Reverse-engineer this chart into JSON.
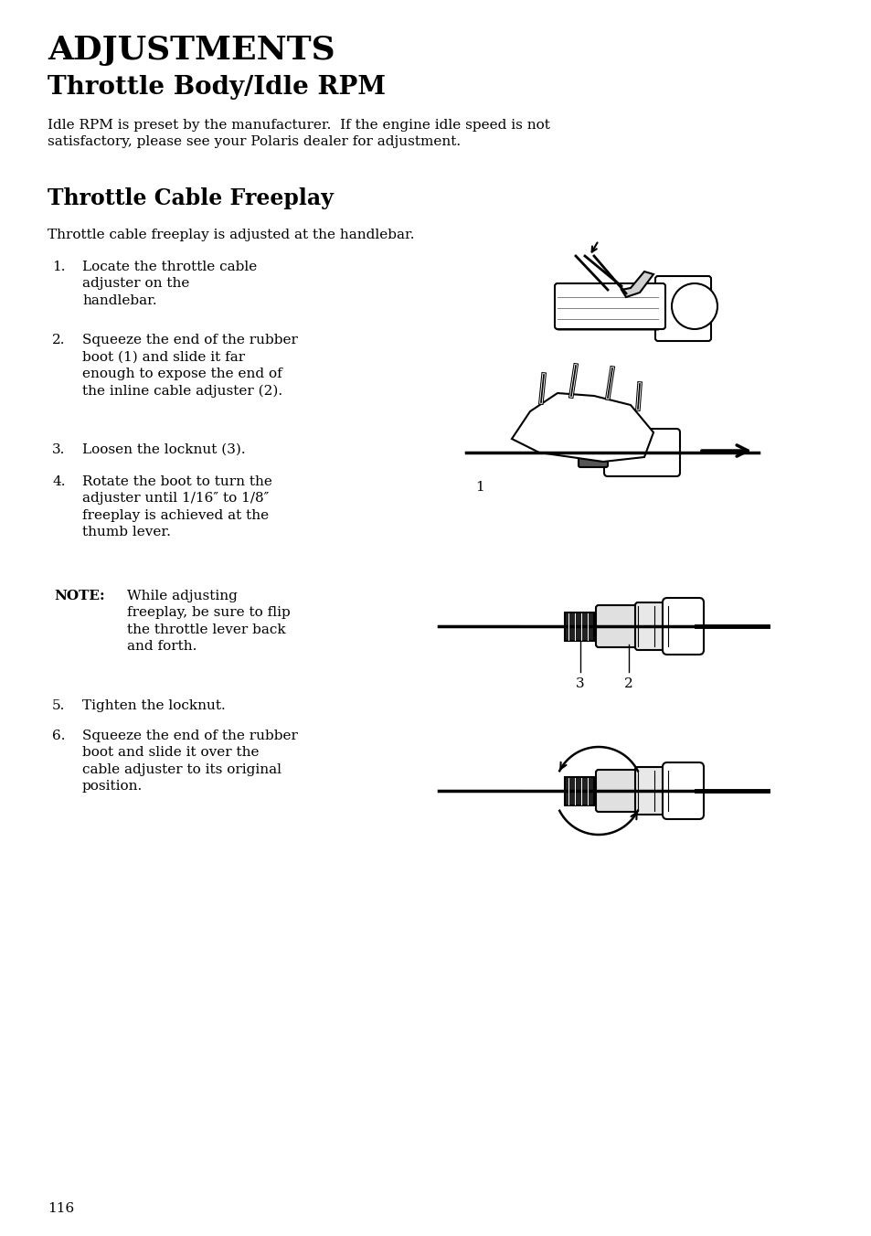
{
  "bg_color": "#ffffff",
  "page_number": "116",
  "title_main": "ADJUSTMENTS",
  "title_sub": "Throttle Body/Idle RPM",
  "para1": "Idle RPM is preset by the manufacturer.  If the engine idle speed is not\nsatisfactory, please see your Polaris dealer for adjustment.",
  "section2_title": "Throttle Cable Freeplay",
  "intro_text": "Throttle cable freeplay is adjusted at the handlebar.",
  "steps": [
    "Locate the throttle cable\nadjuster on the\nhandlebar.",
    "Squeeze the end of the rubber\nboot (1) and slide it far\nenough to expose the end of\nthe inline cable adjuster (2).",
    "Loosen the locknut (3).",
    "Rotate the boot to turn the\nadjuster until 1/16″ to 1/8″\nfreeplay is achieved at the\nthumb lever.",
    "Tighten the locknut.",
    "Squeeze the end of the rubber\nboot and slide it over the\ncable adjuster to its original\nposition."
  ],
  "note_label": "NOTE:",
  "note_text": "While adjusting\nfreeplay, be sure to flip\nthe throttle lever back\nand forth.",
  "text_color": "#000000"
}
